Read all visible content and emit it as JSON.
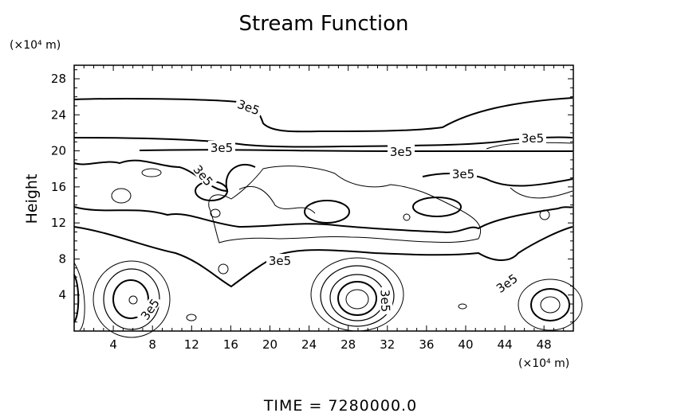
{
  "chart_data": {
    "type": "contour",
    "title": "Stream Function",
    "xlabel": "",
    "ylabel": "Height",
    "x_unit": "(×10⁴ m)",
    "y_unit": "(×10⁴ m)",
    "xlim": [
      0,
      51
    ],
    "ylim": [
      0,
      29.5
    ],
    "xticks": [
      4,
      8,
      12,
      16,
      20,
      24,
      28,
      32,
      36,
      40,
      44,
      48
    ],
    "yticks": [
      4,
      8,
      12,
      16,
      20,
      24,
      28
    ],
    "contour_labels": [
      "3e5",
      "3e5",
      "3e5",
      "3e5",
      "3e5",
      "3e5",
      "3e5",
      "3e5",
      "3e5",
      "3e5"
    ],
    "grid": false,
    "footer": "TIME  =  7280000.0"
  }
}
